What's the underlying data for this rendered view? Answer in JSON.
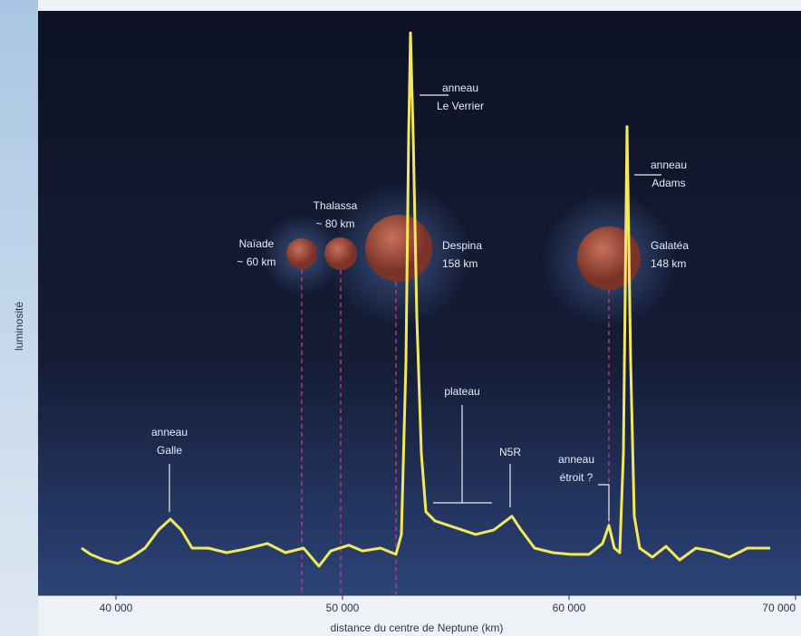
{
  "chart_data": {
    "type": "line",
    "x_label": "distance du centre de Neptune (km)",
    "y_label": "luminosité",
    "color": "#f2e85a",
    "x": [
      38480,
      38880,
      39480,
      40080,
      40680,
      41280,
      41880,
      42400,
      42880,
      43360,
      44080,
      44880,
      45680,
      46680,
      47480,
      48280,
      48960,
      49480,
      50280,
      50880,
      51680,
      52360,
      52600,
      52800,
      52920,
      53000,
      53120,
      53280,
      53480,
      53680,
      54080,
      54680,
      55280,
      55880,
      56680,
      57480,
      57880,
      58480,
      59280,
      60080,
      60880,
      61480,
      61760,
      62000,
      62240,
      62400,
      62560,
      62720,
      62880,
      63120,
      63680,
      64280,
      64880,
      65600,
      66280,
      67080,
      67880,
      68880
    ],
    "values": [
      8.3,
      7.2,
      6.2,
      5.6,
      6.7,
      8.3,
      11.5,
      13.4,
      11.5,
      8.3,
      8.3,
      7.5,
      8.1,
      9.1,
      7.5,
      8.3,
      5.1,
      7.8,
      8.8,
      7.8,
      8.3,
      7.2,
      10.7,
      41,
      80.9,
      99,
      80.9,
      49,
      25,
      14.7,
      13.1,
      12.3,
      11.5,
      10.7,
      11.5,
      13.9,
      11.5,
      8.3,
      7.5,
      7.2,
      7.2,
      9.1,
      12.3,
      8.3,
      7.5,
      25,
      82.5,
      41,
      13.9,
      8.3,
      6.7,
      8.6,
      6.2,
      8.3,
      7.8,
      6.7,
      8.3,
      8.3
    ],
    "xlim": [
      36560,
      70240
    ],
    "ylim": [
      0,
      100
    ],
    "xticks": [
      {
        "value": 40000,
        "label": "40 000"
      },
      {
        "value": 50000,
        "label": "50 000"
      },
      {
        "value": 60000,
        "label": "60 000"
      },
      {
        "value": 70000,
        "label": "70 000"
      }
    ],
    "annotations": [
      {
        "lines": [
          "anneau",
          "Le Verrier"
        ]
      },
      {
        "lines": [
          "anneau",
          "Adams"
        ]
      },
      {
        "lines": [
          "Thalassa",
          "~ 80 km"
        ]
      },
      {
        "lines": [
          "Naïade",
          "~ 60 km"
        ]
      },
      {
        "lines": [
          "Despina",
          "158 km"
        ]
      },
      {
        "lines": [
          "Galatéa",
          "148 km"
        ]
      },
      {
        "lines": [
          "plateau"
        ]
      },
      {
        "lines": [
          "N5R"
        ]
      },
      {
        "lines": [
          "anneau",
          "étroit ?"
        ]
      },
      {
        "lines": [
          "anneau",
          "Galle"
        ]
      }
    ]
  }
}
